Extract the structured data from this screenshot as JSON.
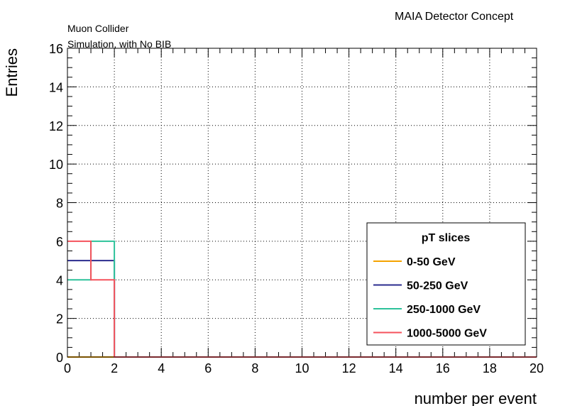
{
  "header": {
    "experiment": "MAIA Detector Concept",
    "line1": "Muon Collider",
    "line2": "Simulation, with No BIB"
  },
  "chart_data": {
    "type": "histogram-step",
    "xlabel": "number per event",
    "ylabel": "Entries",
    "xlim": [
      0,
      20
    ],
    "ylim": [
      0,
      16
    ],
    "xticks": [
      0,
      2,
      4,
      6,
      8,
      10,
      12,
      14,
      16,
      18,
      20
    ],
    "yticks": [
      0,
      2,
      4,
      6,
      8,
      10,
      12,
      14,
      16
    ],
    "grid": true,
    "bin_edges": [
      0,
      1,
      2,
      3,
      4,
      5,
      6,
      7,
      8,
      9,
      10,
      11,
      12,
      13,
      14,
      15,
      16,
      17,
      18,
      19,
      20
    ],
    "legend": {
      "title": "pT slices",
      "placement": "bottom-right"
    },
    "series": [
      {
        "name": "0-50 GeV",
        "color": "#f5a300",
        "values": [
          0,
          0,
          0,
          0,
          0,
          0,
          0,
          0,
          0,
          0,
          0,
          0,
          0,
          0,
          0,
          0,
          0,
          0,
          0,
          0
        ]
      },
      {
        "name": "50-250 GeV",
        "color": "#2b2c8f",
        "values": [
          5,
          5,
          0,
          0,
          0,
          0,
          0,
          0,
          0,
          0,
          0,
          0,
          0,
          0,
          0,
          0,
          0,
          0,
          0,
          0
        ]
      },
      {
        "name": "250-1000 GeV",
        "color": "#2dc29a",
        "values": [
          4,
          6,
          0,
          0,
          0,
          0,
          0,
          0,
          0,
          0,
          0,
          0,
          0,
          0,
          0,
          0,
          0,
          0,
          0,
          0
        ]
      },
      {
        "name": "1000-5000 GeV",
        "color": "#f5525c",
        "values": [
          6,
          4,
          0,
          0,
          0,
          0,
          0,
          0,
          0,
          0,
          0,
          0,
          0,
          0,
          0,
          0,
          0,
          0,
          0,
          0
        ]
      }
    ]
  }
}
